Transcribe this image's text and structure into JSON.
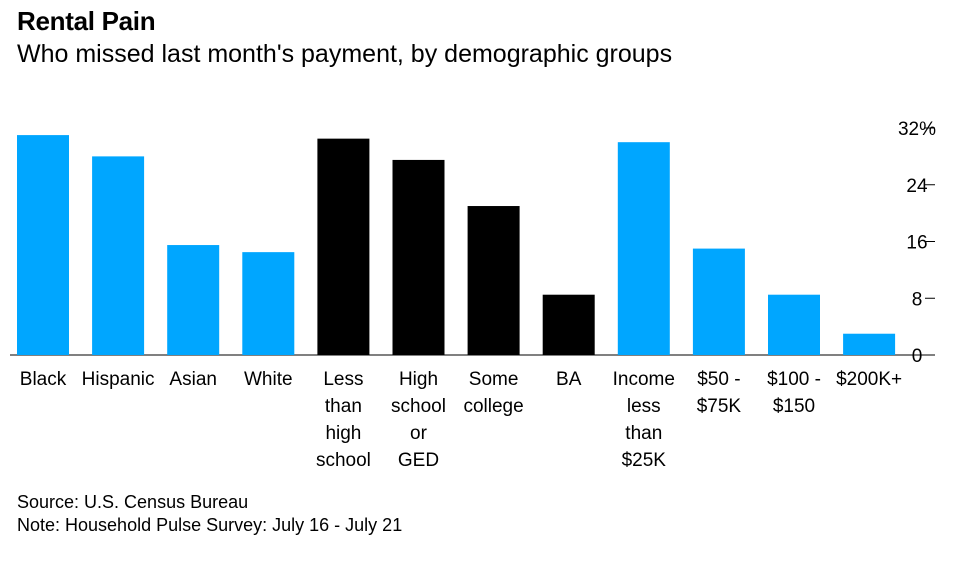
{
  "title": "Rental Pain",
  "subtitle": "Who missed last month's payment, by demographic groups",
  "source": "Source: U.S. Census Bureau",
  "note": "Note: Household Pulse Survey: July 16 - July 21",
  "colors": {
    "race_and_income": "#00a6ff",
    "education": "#000000",
    "axis": "#000000"
  },
  "chart_data": {
    "type": "bar",
    "title": "Rental Pain",
    "subtitle": "Who missed last month's payment, by demographic groups",
    "categories": [
      [
        "Black"
      ],
      [
        "Hispanic"
      ],
      [
        "Asian"
      ],
      [
        "White"
      ],
      [
        "Less",
        "than",
        "high",
        "school"
      ],
      [
        "High",
        "school",
        "or",
        "GED"
      ],
      [
        "Some",
        "college"
      ],
      [
        "BA"
      ],
      [
        "Income",
        "less",
        "than",
        "$25K"
      ],
      [
        "$50 -",
        "$75K"
      ],
      [
        "$100 -",
        "$150"
      ],
      [
        "$200K+"
      ]
    ],
    "values": [
      31,
      28,
      15.5,
      14.5,
      30.5,
      27.5,
      21,
      8.5,
      30,
      15,
      8.5,
      3
    ],
    "bar_colors": [
      "#00a6ff",
      "#00a6ff",
      "#00a6ff",
      "#00a6ff",
      "#000000",
      "#000000",
      "#000000",
      "#000000",
      "#00a6ff",
      "#00a6ff",
      "#00a6ff",
      "#00a6ff"
    ],
    "y_ticks": [
      "0",
      "8",
      "16",
      "24",
      "32%"
    ],
    "y_tick_values": [
      0,
      8,
      16,
      24,
      32
    ],
    "ylim": [
      0,
      32
    ],
    "y_axis_position": "right",
    "grid": false
  }
}
